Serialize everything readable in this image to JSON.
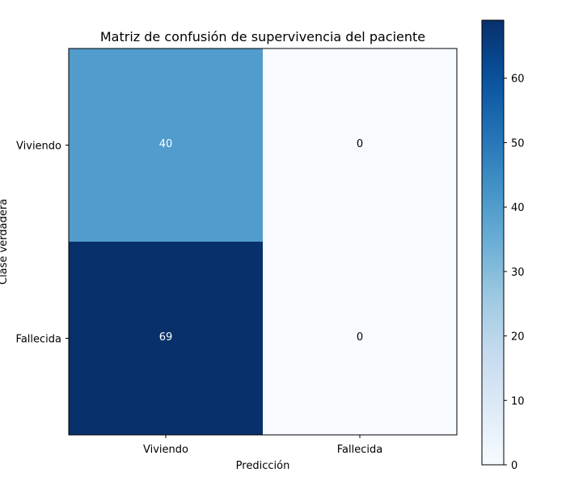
{
  "chart_data": {
    "type": "heatmap",
    "title": "Matriz de confusión de supervivencia del paciente",
    "xlabel": "Predicción",
    "ylabel": "Clase verdadera",
    "x_categories": [
      "Viviendo",
      "Fallecida"
    ],
    "y_categories": [
      "Viviendo",
      "Fallecida"
    ],
    "values": [
      [
        40,
        0
      ],
      [
        69,
        0
      ]
    ],
    "colormap": "Blues",
    "colorbar": {
      "range": [
        0,
        69
      ],
      "ticks": [
        0,
        10,
        20,
        30,
        40,
        50,
        60
      ],
      "tick_labels": [
        "0",
        "10",
        "20",
        "30",
        "40",
        "50",
        "60"
      ]
    },
    "colors": {
      "low": "#f7fbff",
      "high": "#08306b",
      "text_on_dark": "#ffffff",
      "text_on_light": "#000000"
    }
  }
}
